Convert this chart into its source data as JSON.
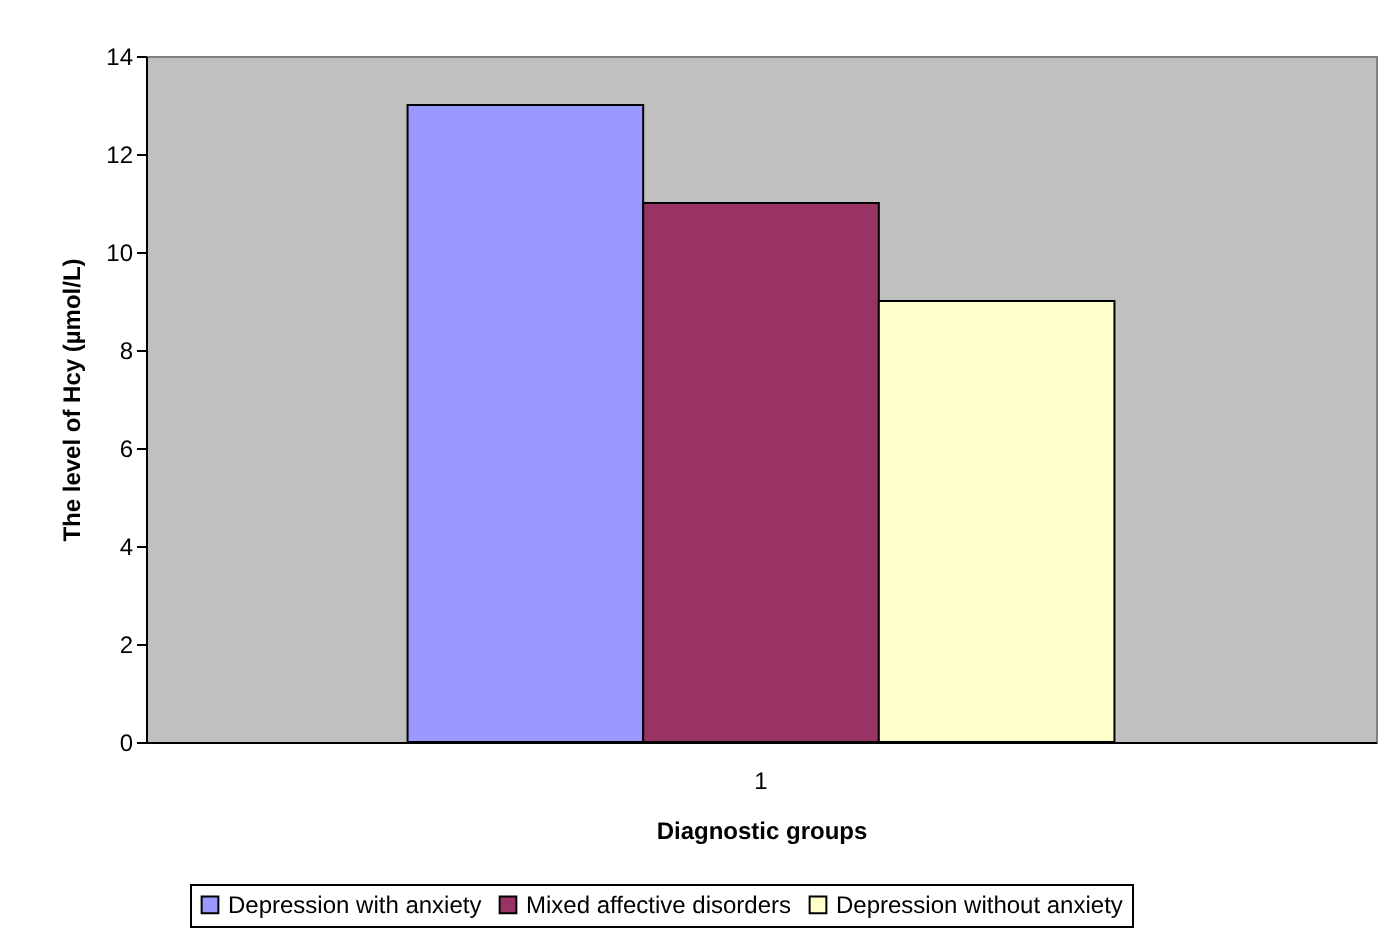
{
  "chart_data": {
    "type": "bar",
    "xlabel": "Diagnostic groups",
    "ylabel": "The level of Hcy (µmol/L)",
    "categories": [
      "1"
    ],
    "series": [
      {
        "name": "Depression with anxiety",
        "color": "#9999ff",
        "values": [
          13
        ]
      },
      {
        "name": "Mixed affective disorders",
        "color": "#993366",
        "values": [
          11
        ]
      },
      {
        "name": "Depression without anxiety",
        "color": "#ffffcc",
        "values": [
          9
        ]
      }
    ],
    "ylim": [
      0,
      14
    ],
    "yticks": [
      0,
      2,
      4,
      6,
      8,
      10,
      12,
      14
    ],
    "grid": false,
    "legend": "bottom"
  }
}
